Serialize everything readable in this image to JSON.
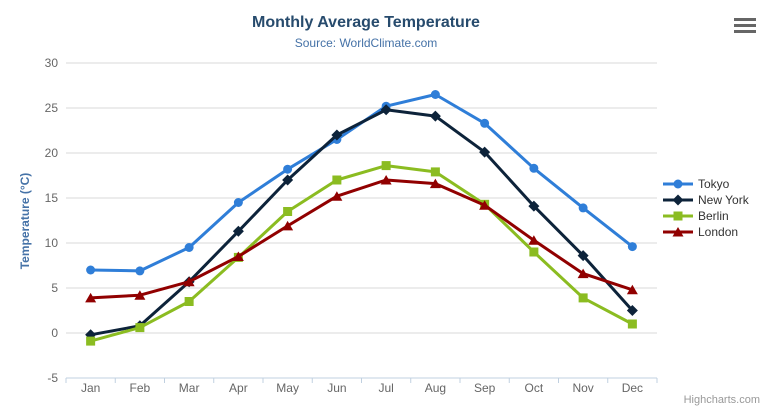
{
  "header": {
    "title": "Monthly Average Temperature",
    "subtitle": "Source: WorldClimate.com"
  },
  "credit": "Highcharts.com",
  "icons": {
    "menu": "hamburger-icon"
  },
  "colors": {
    "title": "#274b6d",
    "subtitle": "#4572a7",
    "axis_title": "#4572a7",
    "axis_label": "#666666",
    "grid": "#d8d8d8",
    "axis_line": "#c0d0e0",
    "credit": "#999999",
    "legend_text": "#333333"
  },
  "chart_data": {
    "type": "line",
    "title": "Monthly Average Temperature",
    "subtitle": "Source: WorldClimate.com",
    "xlabel": "",
    "ylabel": "Temperature (°C)",
    "ylim": [
      -5,
      30
    ],
    "ytick_step": 5,
    "grid": true,
    "legend_position": "right",
    "categories": [
      "Jan",
      "Feb",
      "Mar",
      "Apr",
      "May",
      "Jun",
      "Jul",
      "Aug",
      "Sep",
      "Oct",
      "Nov",
      "Dec"
    ],
    "series": [
      {
        "name": "Tokyo",
        "color": "#2f7ed8",
        "marker": "circle",
        "values": [
          7.0,
          6.9,
          9.5,
          14.5,
          18.2,
          21.5,
          25.2,
          26.5,
          23.3,
          18.3,
          13.9,
          9.6
        ]
      },
      {
        "name": "New York",
        "color": "#0d233a",
        "marker": "diamond",
        "values": [
          -0.2,
          0.8,
          5.7,
          11.3,
          17.0,
          22.0,
          24.8,
          24.1,
          20.1,
          14.1,
          8.6,
          2.5
        ]
      },
      {
        "name": "Berlin",
        "color": "#8bbc21",
        "marker": "square",
        "values": [
          -0.9,
          0.6,
          3.5,
          8.4,
          13.5,
          17.0,
          18.6,
          17.9,
          14.3,
          9.0,
          3.9,
          1.0
        ]
      },
      {
        "name": "London",
        "color": "#910000",
        "marker": "triangle",
        "values": [
          3.9,
          4.2,
          5.7,
          8.5,
          11.9,
          15.2,
          17.0,
          16.6,
          14.2,
          10.3,
          6.6,
          4.8
        ]
      }
    ]
  }
}
